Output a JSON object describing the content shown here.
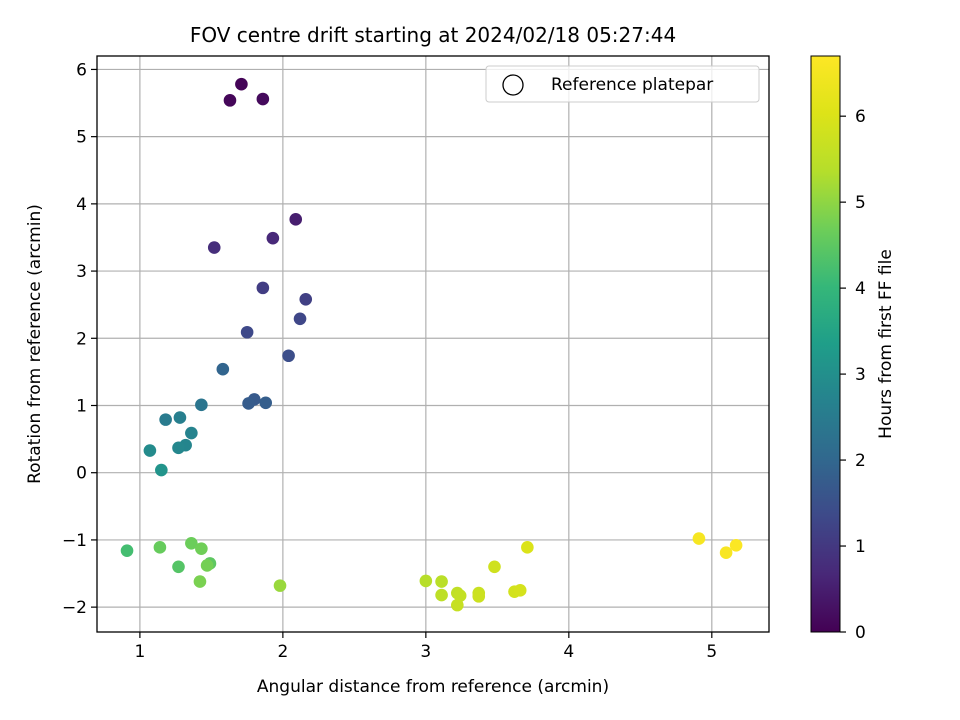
{
  "chart_data": {
    "type": "scatter",
    "title": "FOV centre drift starting at 2024/02/18 05:27:44",
    "xlabel": "Angular distance from reference (arcmin)",
    "ylabel": "Rotation from reference (arcmin)",
    "xlim": [
      0.7,
      5.4
    ],
    "ylim": [
      -2.37,
      6.2
    ],
    "xticks": [
      1,
      2,
      3,
      4,
      5
    ],
    "yticks": [
      -2,
      -1,
      0,
      1,
      2,
      3,
      4,
      5,
      6
    ],
    "grid": true,
    "legend": {
      "placement": "top-right",
      "entries": [
        "Reference platepar"
      ],
      "marker": "hollow-circle"
    },
    "colorbar": {
      "label": "Hours from first FF file",
      "range": [
        0,
        6.7
      ],
      "ticks": [
        0,
        1,
        2,
        3,
        4,
        5,
        6
      ],
      "colormap": "viridis"
    },
    "points": [
      {
        "x": 1.71,
        "y": 5.78,
        "hours": 0.05
      },
      {
        "x": 1.63,
        "y": 5.54,
        "hours": 0.1
      },
      {
        "x": 1.86,
        "y": 5.56,
        "hours": 0.15
      },
      {
        "x": 2.09,
        "y": 3.77,
        "hours": 0.5
      },
      {
        "x": 1.93,
        "y": 3.49,
        "hours": 0.7
      },
      {
        "x": 1.52,
        "y": 3.35,
        "hours": 0.8
      },
      {
        "x": 1.86,
        "y": 2.75,
        "hours": 1.1
      },
      {
        "x": 2.16,
        "y": 2.58,
        "hours": 1.15
      },
      {
        "x": 2.12,
        "y": 2.29,
        "hours": 1.3
      },
      {
        "x": 1.75,
        "y": 2.09,
        "hours": 1.35
      },
      {
        "x": 2.04,
        "y": 1.74,
        "hours": 1.45
      },
      {
        "x": 1.58,
        "y": 1.54,
        "hours": 1.95
      },
      {
        "x": 1.8,
        "y": 1.09,
        "hours": 1.7
      },
      {
        "x": 1.76,
        "y": 1.03,
        "hours": 1.75
      },
      {
        "x": 1.88,
        "y": 1.04,
        "hours": 1.8
      },
      {
        "x": 1.43,
        "y": 1.01,
        "hours": 2.35
      },
      {
        "x": 1.18,
        "y": 0.79,
        "hours": 2.5
      },
      {
        "x": 1.28,
        "y": 0.82,
        "hours": 2.6
      },
      {
        "x": 1.36,
        "y": 0.59,
        "hours": 2.7
      },
      {
        "x": 1.32,
        "y": 0.41,
        "hours": 2.75
      },
      {
        "x": 1.27,
        "y": 0.37,
        "hours": 2.8
      },
      {
        "x": 1.07,
        "y": 0.33,
        "hours": 2.9
      },
      {
        "x": 1.15,
        "y": 0.04,
        "hours": 3.1
      },
      {
        "x": 0.91,
        "y": -1.16,
        "hours": 4.2
      },
      {
        "x": 1.14,
        "y": -1.11,
        "hours": 4.6
      },
      {
        "x": 1.36,
        "y": -1.05,
        "hours": 4.65
      },
      {
        "x": 1.43,
        "y": -1.13,
        "hours": 4.7
      },
      {
        "x": 1.27,
        "y": -1.4,
        "hours": 4.4
      },
      {
        "x": 1.49,
        "y": -1.35,
        "hours": 4.5
      },
      {
        "x": 1.47,
        "y": -1.38,
        "hours": 4.75
      },
      {
        "x": 1.42,
        "y": -1.62,
        "hours": 4.8
      },
      {
        "x": 1.98,
        "y": -1.68,
        "hours": 5.1
      },
      {
        "x": 3.0,
        "y": -1.61,
        "hours": 5.4
      },
      {
        "x": 3.11,
        "y": -1.62,
        "hours": 5.45
      },
      {
        "x": 3.11,
        "y": -1.82,
        "hours": 5.5
      },
      {
        "x": 3.22,
        "y": -1.79,
        "hours": 5.55
      },
      {
        "x": 3.24,
        "y": -1.83,
        "hours": 5.6
      },
      {
        "x": 3.22,
        "y": -1.97,
        "hours": 5.65
      },
      {
        "x": 3.37,
        "y": -1.79,
        "hours": 5.7
      },
      {
        "x": 3.37,
        "y": -1.84,
        "hours": 5.75
      },
      {
        "x": 3.48,
        "y": -1.4,
        "hours": 5.8
      },
      {
        "x": 3.62,
        "y": -1.77,
        "hours": 5.85
      },
      {
        "x": 3.66,
        "y": -1.75,
        "hours": 5.9
      },
      {
        "x": 3.71,
        "y": -1.11,
        "hours": 6.0
      },
      {
        "x": 4.91,
        "y": -0.98,
        "hours": 6.55
      },
      {
        "x": 5.1,
        "y": -1.19,
        "hours": 6.6
      },
      {
        "x": 5.17,
        "y": -1.08,
        "hours": 6.65
      }
    ]
  }
}
